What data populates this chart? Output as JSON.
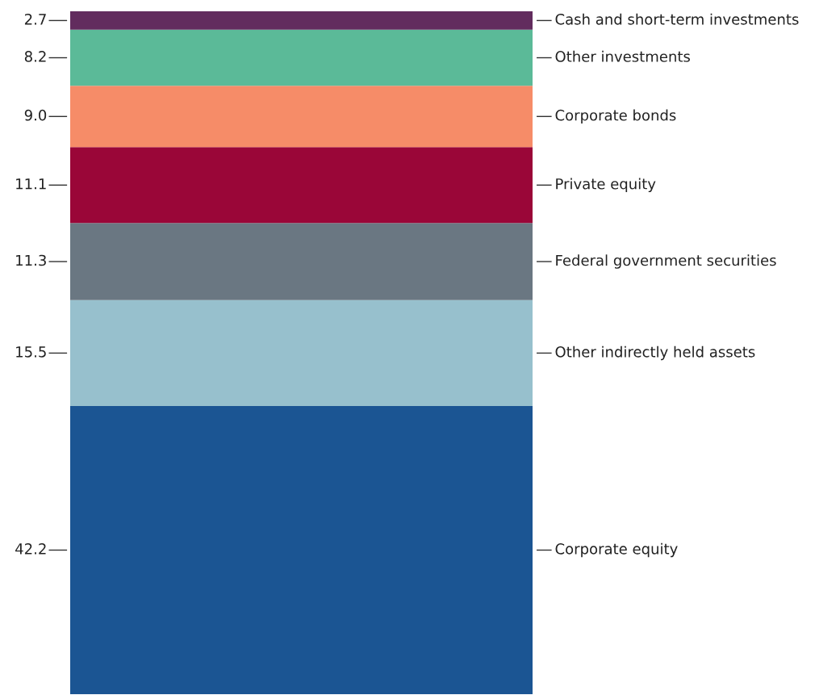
{
  "chart_data": {
    "type": "bar",
    "stacked": true,
    "categories": [
      null
    ],
    "series": [
      {
        "name": "Corporate equity",
        "color": "#1b5593",
        "values": [
          42.2
        ],
        "value_labels": [
          "42.2"
        ]
      },
      {
        "name": "Other indirectly held assets",
        "color": "#97c0cd",
        "values": [
          15.5
        ],
        "value_labels": [
          "15.5"
        ]
      },
      {
        "name": "Federal government securities",
        "color": "#6a7782",
        "values": [
          11.3
        ],
        "value_labels": [
          "11.3"
        ]
      },
      {
        "name": "Private equity",
        "color": "#9a0638",
        "values": [
          11.1
        ],
        "value_labels": [
          "11.1"
        ]
      },
      {
        "name": "Corporate bonds",
        "color": "#f68c68",
        "values": [
          9.0
        ],
        "value_labels": [
          "9.0"
        ]
      },
      {
        "name": "Other investments",
        "color": "#5bba98",
        "values": [
          8.2
        ],
        "value_labels": [
          "8.2"
        ]
      },
      {
        "name": "Cash and short-term investments",
        "color": "#622c5e",
        "values": [
          2.7
        ],
        "value_labels": [
          "2.7"
        ]
      }
    ]
  }
}
